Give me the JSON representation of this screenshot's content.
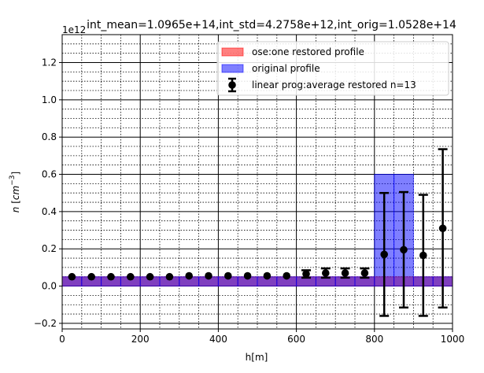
{
  "chart_data": {
    "type": "bar",
    "title": "int_mean=1.0965e+14,int_std=4.2758e+12,int_orig=1.0528e+14",
    "xlabel": "h[m]",
    "ylabel": "n [cm^-3]",
    "y_offset_label": "1e12",
    "xlim": [
      0,
      1000
    ],
    "ylim": [
      -0.23,
      1.35
    ],
    "x_ticks": [
      0,
      200,
      400,
      600,
      800,
      1000
    ],
    "x_tick_labels": [
      "0",
      "200",
      "400",
      "600",
      "800",
      "1000"
    ],
    "y_ticks": [
      -0.2,
      0.0,
      0.2,
      0.4,
      0.6,
      0.8,
      1.0,
      1.2
    ],
    "y_tick_labels": [
      "−0.2",
      "0.0",
      "0.2",
      "0.4",
      "0.6",
      "0.8",
      "1.0",
      "1.2"
    ],
    "grid": true,
    "legend_position": "top-right",
    "bin_edges": [
      0,
      50,
      100,
      150,
      200,
      250,
      300,
      350,
      400,
      450,
      500,
      550,
      600,
      650,
      700,
      750,
      800,
      850,
      900,
      950,
      1000
    ],
    "series": [
      {
        "name": "ose:one restored profile",
        "kind": "bar",
        "color": "#ff0000",
        "values": [
          0.05,
          0.05,
          0.05,
          0.05,
          0.05,
          0.05,
          0.05,
          0.05,
          0.05,
          0.05,
          0.05,
          0.05,
          0.05,
          0.05,
          0.05,
          0.05,
          0.05,
          0.05,
          0.05,
          0.05
        ]
      },
      {
        "name": "original profile",
        "kind": "bar",
        "color": "#0000ff",
        "values": [
          0.05,
          0.05,
          0.05,
          0.05,
          0.05,
          0.05,
          0.05,
          0.05,
          0.05,
          0.05,
          0.05,
          0.05,
          0.05,
          0.05,
          0.05,
          0.05,
          0.6,
          0.6,
          0.05,
          0.05
        ]
      },
      {
        "name": "linear prog:average restored n=13",
        "kind": "errorbar",
        "color": "#000000",
        "x": [
          25,
          75,
          125,
          175,
          225,
          275,
          325,
          375,
          425,
          475,
          525,
          575,
          625,
          675,
          725,
          775,
          825,
          875,
          925,
          975
        ],
        "y": [
          0.05,
          0.05,
          0.05,
          0.05,
          0.05,
          0.05,
          0.055,
          0.055,
          0.055,
          0.055,
          0.055,
          0.055,
          0.065,
          0.07,
          0.07,
          0.07,
          0.17,
          0.195,
          0.165,
          0.31
        ],
        "yerr": [
          0.0,
          0.0,
          0.0,
          0.0,
          0.0,
          0.0,
          0.0,
          0.0,
          0.0,
          0.0,
          0.0,
          0.0,
          0.02,
          0.025,
          0.025,
          0.025,
          0.33,
          0.31,
          0.325,
          0.425
        ]
      }
    ]
  }
}
